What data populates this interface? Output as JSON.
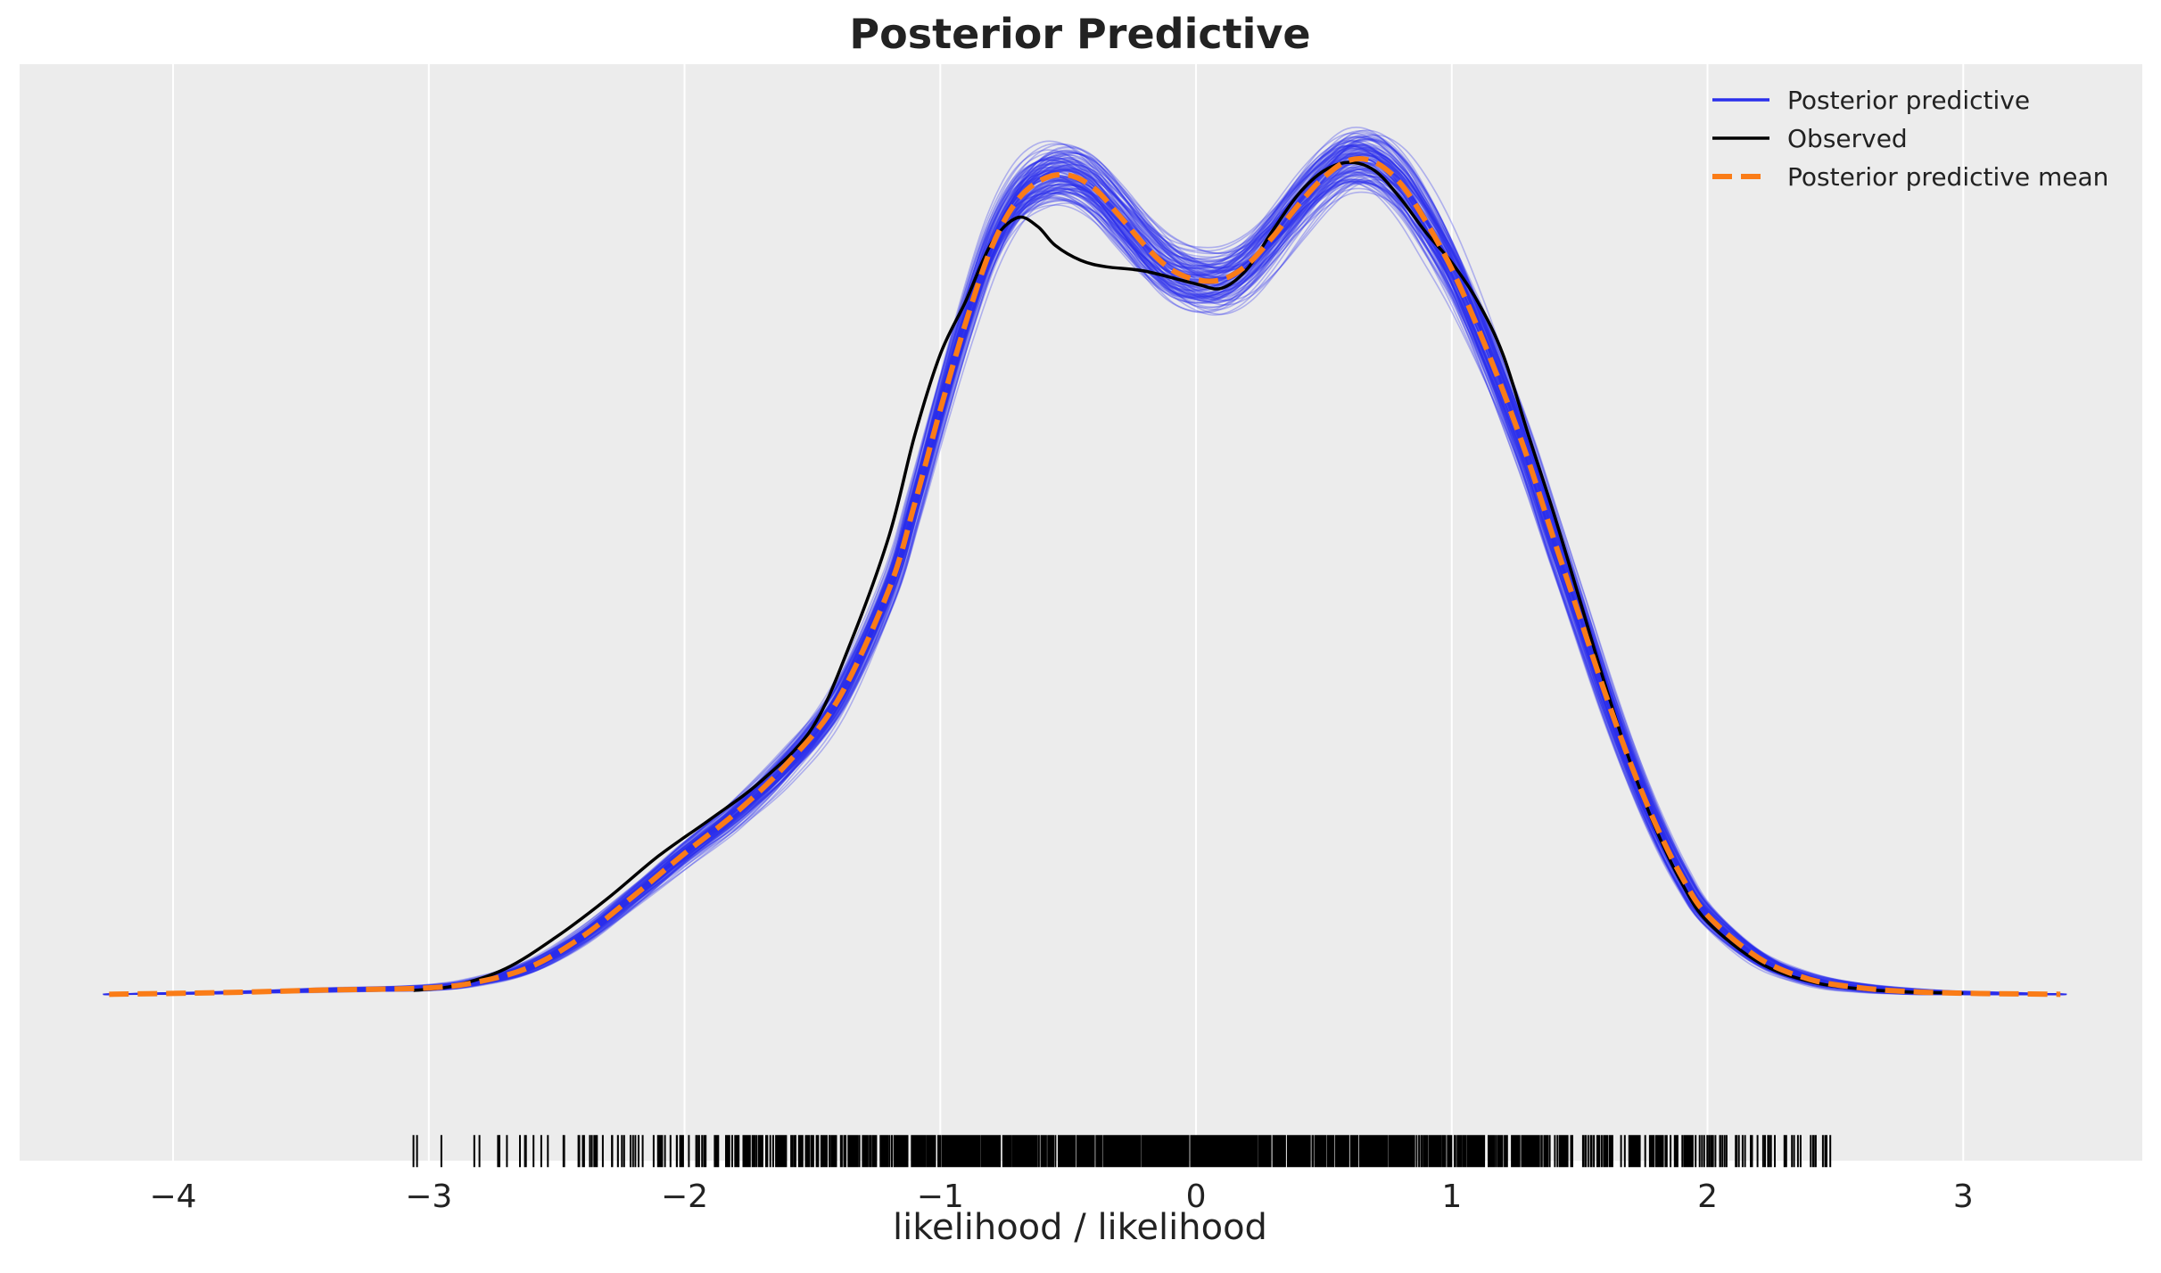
{
  "chart_data": {
    "type": "line",
    "title": "Posterior Predictive",
    "xlabel": "likelihood / likelihood",
    "ylabel": "",
    "xlim": [
      -4.6,
      3.7
    ],
    "ylim": [
      -0.078,
      0.436
    ],
    "x_ticks": [
      -4,
      -3,
      -2,
      -1,
      0,
      1,
      2,
      3
    ],
    "x_tick_labels": [
      "−4",
      "−3",
      "−2",
      "−1",
      "0",
      "1",
      "2",
      "3"
    ],
    "y_ticks_shown": false,
    "grid": "vertical",
    "background": "#ececec",
    "legend": {
      "placement": "top-right",
      "entries": [
        {
          "label": "Posterior predictive",
          "color": "#2a2eec",
          "style": "solid"
        },
        {
          "label": "Observed",
          "color": "#000000",
          "style": "solid"
        },
        {
          "label": "Posterior predictive mean",
          "color": "#fa7c17",
          "style": "dashed"
        }
      ]
    },
    "series": [
      {
        "name": "Observed",
        "color": "#000000",
        "x": [
          -3.06,
          -2.9,
          -2.7,
          -2.5,
          -2.3,
          -2.1,
          -1.9,
          -1.7,
          -1.5,
          -1.35,
          -1.2,
          -1.1,
          -1.0,
          -0.9,
          -0.8,
          -0.7,
          -0.62,
          -0.55,
          -0.45,
          -0.35,
          -0.2,
          0.0,
          0.1,
          0.2,
          0.3,
          0.4,
          0.5,
          0.6,
          0.7,
          0.8,
          0.9,
          1.0,
          1.1,
          1.2,
          1.3,
          1.4,
          1.5,
          1.6,
          1.7,
          1.8,
          1.9,
          2.0,
          2.2,
          2.4,
          2.6,
          2.8,
          3.0
        ],
        "y": [
          0.0018,
          0.004,
          0.012,
          0.027,
          0.045,
          0.065,
          0.082,
          0.1,
          0.125,
          0.165,
          0.215,
          0.262,
          0.3,
          0.325,
          0.352,
          0.364,
          0.36,
          0.351,
          0.344,
          0.341,
          0.339,
          0.333,
          0.331,
          0.34,
          0.358,
          0.375,
          0.386,
          0.39,
          0.386,
          0.373,
          0.357,
          0.343,
          0.325,
          0.3,
          0.262,
          0.225,
          0.185,
          0.145,
          0.108,
          0.077,
          0.052,
          0.034,
          0.015,
          0.006,
          0.0025,
          0.001,
          0.0005
        ]
      },
      {
        "name": "Posterior predictive mean",
        "color": "#fa7c17",
        "x": [
          -4.25,
          -3.8,
          -3.4,
          -3.0,
          -2.8,
          -2.6,
          -2.4,
          -2.2,
          -2.0,
          -1.8,
          -1.6,
          -1.4,
          -1.2,
          -1.1,
          -1.0,
          -0.9,
          -0.8,
          -0.7,
          -0.6,
          -0.5,
          -0.4,
          -0.3,
          -0.2,
          -0.1,
          0.0,
          0.1,
          0.2,
          0.3,
          0.4,
          0.5,
          0.6,
          0.7,
          0.8,
          0.9,
          1.0,
          1.1,
          1.2,
          1.3,
          1.4,
          1.5,
          1.6,
          1.7,
          1.8,
          1.9,
          2.0,
          2.2,
          2.4,
          2.6,
          2.8,
          3.0,
          3.2,
          3.38
        ],
        "y": [
          0.0,
          0.0008,
          0.002,
          0.003,
          0.006,
          0.013,
          0.027,
          0.046,
          0.066,
          0.085,
          0.108,
          0.138,
          0.19,
          0.23,
          0.274,
          0.315,
          0.35,
          0.372,
          0.382,
          0.384,
          0.378,
          0.365,
          0.351,
          0.34,
          0.335,
          0.335,
          0.342,
          0.355,
          0.37,
          0.383,
          0.391,
          0.39,
          0.38,
          0.362,
          0.34,
          0.313,
          0.283,
          0.25,
          0.213,
          0.177,
          0.141,
          0.108,
          0.079,
          0.055,
          0.037,
          0.017,
          0.007,
          0.003,
          0.0012,
          0.0005,
          0.0002,
          0.0
        ]
      }
    ],
    "posterior_predictive_draws": {
      "color": "#2a2eec",
      "count": 120,
      "band_half_width": [
        0.0,
        0.0005,
        0.001,
        0.0015,
        0.002,
        0.003,
        0.004,
        0.005,
        0.006,
        0.007,
        0.008,
        0.009,
        0.01,
        0.011,
        0.012,
        0.013,
        0.014,
        0.015,
        0.016,
        0.016,
        0.016,
        0.016,
        0.016,
        0.016,
        0.016,
        0.016,
        0.016,
        0.016,
        0.016,
        0.016,
        0.016,
        0.016,
        0.016,
        0.016,
        0.015,
        0.014,
        0.013,
        0.012,
        0.011,
        0.01,
        0.009,
        0.008,
        0.007,
        0.006,
        0.005,
        0.004,
        0.003,
        0.002,
        0.0015,
        0.001,
        0.0005,
        0.0
      ]
    },
    "rug": {
      "y": -0.0735,
      "color": "#000000",
      "x_min": -3.06,
      "x_max": 2.48,
      "count": 1500
    }
  }
}
